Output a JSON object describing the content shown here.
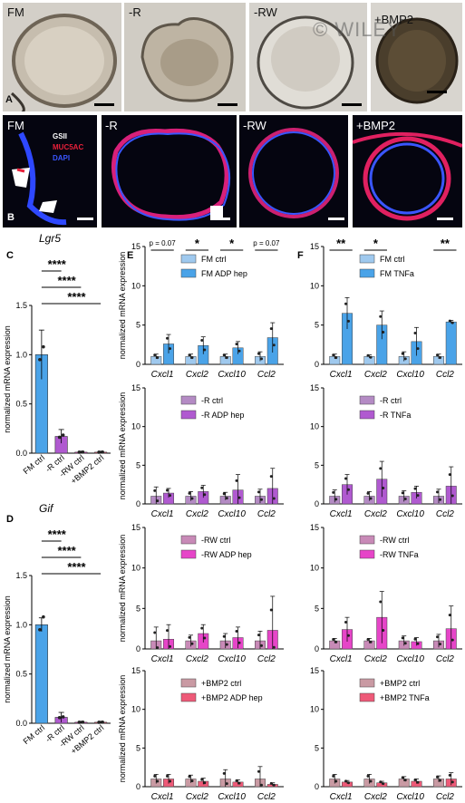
{
  "figure": {
    "watermark": "© WILEY",
    "panel_A": {
      "label": "A",
      "conditions": [
        "FM",
        "-R",
        "-RW",
        "+BMP2"
      ]
    },
    "panel_B": {
      "label": "B",
      "conditions": [
        "FM",
        "-R",
        "-RW",
        "+BMP2"
      ],
      "stain_legend": [
        "GSII",
        "MUC5AC",
        "DAPI"
      ],
      "stain_colors": [
        "#ffffff",
        "#e8203a",
        "#3a56ff"
      ]
    }
  },
  "colors": {
    "FM": "#4aa3e8",
    "FM_light": "#9fc9ee",
    "R": "#b05ad0",
    "R_light": "#b48bc4",
    "RW": "#e645c8",
    "RW_light": "#c88ab7",
    "BMP2": "#ee5a78",
    "BMP2_light": "#c99aa3"
  },
  "chart_data": [
    {
      "id": "C",
      "panel_label": "C",
      "type": "bar",
      "title": "Lgr5",
      "ylabel": "normalized mRNA expression",
      "categories": [
        "FM ctrl",
        "-R ctrl",
        "-RW ctrl",
        "+BMP2 ctrl"
      ],
      "values": [
        1.0,
        0.17,
        0.01,
        0.01
      ],
      "errors": [
        0.25,
        0.07,
        0.01,
        0.01
      ],
      "ylim": [
        0,
        1.5
      ],
      "yticks": [
        "0.0",
        "0.5",
        "1.0",
        "1.5"
      ],
      "significance": [
        "****",
        "****",
        "****"
      ]
    },
    {
      "id": "D",
      "panel_label": "D",
      "type": "bar",
      "title": "Gif",
      "ylabel": "normalized mRNA expression",
      "categories": [
        "FM ctrl",
        "-R ctrl",
        "-RW ctrl",
        "+BMP2 ctrl"
      ],
      "values": [
        1.0,
        0.06,
        0.01,
        0.01
      ],
      "errors": [
        0.07,
        0.05,
        0.01,
        0.01
      ],
      "ylim": [
        0,
        1.5
      ],
      "yticks": [
        "0.0",
        "0.5",
        "1.0",
        "1.5"
      ],
      "significance": [
        "****",
        "****",
        "****"
      ]
    },
    {
      "id": "E1",
      "panel_label": "E",
      "type": "bar",
      "ylabel": "normalized mRNA expression",
      "categories": [
        "Cxcl1",
        "Cxcl2",
        "Cxcl10",
        "Ccl2"
      ],
      "series": [
        {
          "name": "FM ctrl",
          "values": [
            1.0,
            1.0,
            1.0,
            1.0
          ],
          "errors": [
            0.3,
            0.3,
            0.3,
            0.6
          ]
        },
        {
          "name": "FM ADP hep",
          "values": [
            2.6,
            2.4,
            2.1,
            3.4
          ],
          "errors": [
            1.2,
            1.1,
            0.8,
            1.9
          ]
        }
      ],
      "ylim": [
        0,
        15
      ],
      "yticks": [
        "0",
        "5",
        "10",
        "15"
      ],
      "significance": [
        "p = 0.07",
        "*",
        "*",
        "p = 0.07"
      ]
    },
    {
      "id": "E2",
      "type": "bar",
      "ylabel": "normalized mRNA expression",
      "categories": [
        "Cxcl1",
        "Cxcl2",
        "Cxcl10",
        "Ccl2"
      ],
      "series": [
        {
          "name": "-R ctrl",
          "values": [
            1.0,
            1.0,
            1.0,
            1.0
          ],
          "errors": [
            1.2,
            0.6,
            0.5,
            0.9
          ]
        },
        {
          "name": "-R ADP hep",
          "values": [
            1.4,
            1.6,
            1.8,
            2.0
          ],
          "errors": [
            0.6,
            0.8,
            2.0,
            2.6
          ]
        }
      ],
      "ylim": [
        0,
        15
      ],
      "yticks": [
        "0",
        "5",
        "10",
        "15"
      ]
    },
    {
      "id": "E3",
      "type": "bar",
      "ylabel": "normalized mRNA expression",
      "categories": [
        "Cxcl1",
        "Cxcl2",
        "Cxcl10",
        "Ccl2"
      ],
      "series": [
        {
          "name": "-RW ctrl",
          "values": [
            1.0,
            1.0,
            1.0,
            1.0
          ],
          "errors": [
            1.7,
            0.7,
            0.9,
            1.2
          ]
        },
        {
          "name": "-RW ADP hep",
          "values": [
            1.2,
            1.9,
            1.4,
            2.3
          ],
          "errors": [
            1.8,
            1.1,
            1.3,
            4.2
          ]
        }
      ],
      "ylim": [
        0,
        15
      ],
      "yticks": [
        "0",
        "5",
        "10",
        "15"
      ]
    },
    {
      "id": "E4",
      "type": "bar",
      "ylabel": "normalized mRNA expression",
      "categories": [
        "Cxcl1",
        "Cxcl2",
        "Cxcl10",
        "Ccl2"
      ],
      "series": [
        {
          "name": "+BMP2 ctrl",
          "values": [
            1.0,
            1.0,
            1.0,
            1.0
          ],
          "errors": [
            0.6,
            0.5,
            1.2,
            1.6
          ]
        },
        {
          "name": "+BMP2 ADP hep",
          "values": [
            1.0,
            0.7,
            0.6,
            0.3
          ],
          "errors": [
            0.6,
            0.4,
            0.3,
            0.2
          ]
        }
      ],
      "ylim": [
        0,
        15
      ],
      "yticks": [
        "0",
        "5",
        "10",
        "15"
      ]
    },
    {
      "id": "F1",
      "panel_label": "F",
      "type": "bar",
      "categories": [
        "Cxcl1",
        "Cxcl2",
        "Cxcl10",
        "Ccl2"
      ],
      "series": [
        {
          "name": "FM ctrl",
          "values": [
            1.0,
            1.0,
            1.0,
            1.0
          ],
          "errors": [
            0.3,
            0.2,
            0.6,
            0.3
          ]
        },
        {
          "name": "FM TNFa",
          "values": [
            6.5,
            5.0,
            2.9,
            5.4
          ],
          "errors": [
            2.0,
            1.8,
            1.8,
            0.2
          ]
        }
      ],
      "ylim": [
        0,
        15
      ],
      "yticks": [
        "0",
        "5",
        "10",
        "15"
      ],
      "significance": [
        "**",
        "*",
        "",
        "**"
      ]
    },
    {
      "id": "F2",
      "type": "bar",
      "categories": [
        "Cxcl1",
        "Cxcl2",
        "Cxcl10",
        "Ccl2"
      ],
      "series": [
        {
          "name": "-R ctrl",
          "values": [
            1.0,
            1.0,
            1.0,
            1.0
          ],
          "errors": [
            0.8,
            0.6,
            0.7,
            0.9
          ]
        },
        {
          "name": "-R TNFa",
          "values": [
            2.5,
            3.2,
            1.5,
            2.3
          ],
          "errors": [
            1.3,
            2.3,
            0.8,
            2.5
          ]
        }
      ],
      "ylim": [
        0,
        15
      ],
      "yticks": [
        "0",
        "5",
        "10",
        "15"
      ]
    },
    {
      "id": "F3",
      "type": "bar",
      "categories": [
        "Cxcl1",
        "Cxcl2",
        "Cxcl10",
        "Ccl2"
      ],
      "series": [
        {
          "name": "-RW ctrl",
          "values": [
            1.0,
            1.0,
            1.0,
            1.0
          ],
          "errors": [
            0.3,
            0.3,
            0.6,
            0.8
          ]
        },
        {
          "name": "-RW TNFa",
          "values": [
            2.4,
            3.9,
            0.9,
            2.5
          ],
          "errors": [
            1.5,
            3.2,
            0.5,
            2.8
          ]
        }
      ],
      "ylim": [
        0,
        15
      ],
      "yticks": [
        "0",
        "5",
        "10",
        "15"
      ]
    },
    {
      "id": "F4",
      "type": "bar",
      "categories": [
        "Cxcl1",
        "Cxcl2",
        "Cxcl10",
        "Ccl2"
      ],
      "series": [
        {
          "name": "+BMP2 ctrl",
          "values": [
            1.0,
            1.0,
            1.0,
            1.0
          ],
          "errors": [
            0.6,
            0.6,
            0.3,
            0.4
          ]
        },
        {
          "name": "+BMP2 TNFa",
          "values": [
            0.6,
            0.5,
            0.7,
            1.0
          ],
          "errors": [
            0.2,
            0.2,
            0.3,
            0.8
          ]
        }
      ],
      "ylim": [
        0,
        15
      ],
      "yticks": [
        "0",
        "5",
        "10",
        "15"
      ]
    }
  ]
}
